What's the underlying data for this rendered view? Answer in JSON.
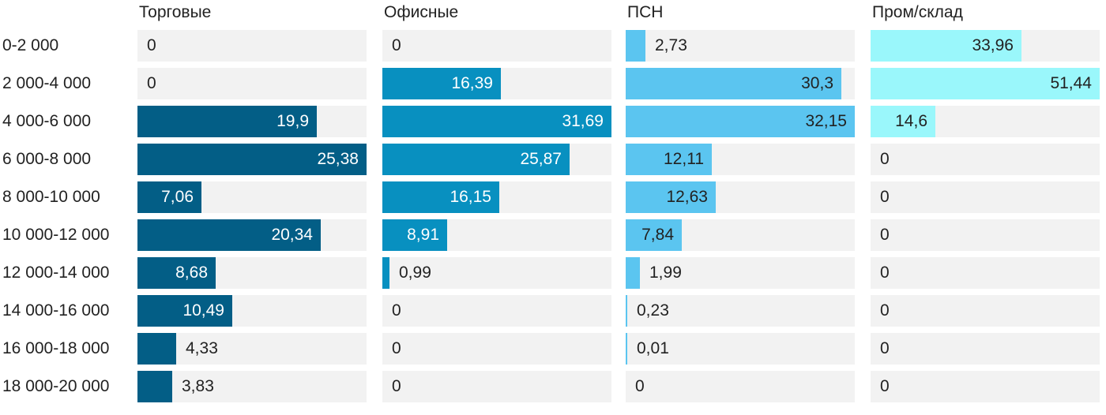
{
  "chart_data": {
    "type": "bar",
    "orientation": "horizontal",
    "layout": "small-multiples",
    "categories": [
      "0-2 000",
      "2 000-4 000",
      "4 000-6 000",
      "6 000-8 000",
      "8 000-10 000",
      "10 000-12 000",
      "12 000-14 000",
      "14 000-16 000",
      "16 000-18 000",
      "18 000-20 000"
    ],
    "series": [
      {
        "name": "Торговые",
        "color": "#035e86",
        "text_on_bar": "#ffffff",
        "values": [
          0,
          0,
          19.9,
          25.38,
          7.06,
          20.34,
          8.68,
          10.49,
          4.33,
          3.83
        ],
        "labels": [
          "0",
          "0",
          "19,9",
          "25,38",
          "7,06",
          "20,34",
          "8,68",
          "10,49",
          "4,33",
          "3,83"
        ],
        "xlim": [
          0,
          25.38
        ]
      },
      {
        "name": "Офисные",
        "color": "#0890c0",
        "text_on_bar": "#ffffff",
        "values": [
          0,
          16.39,
          31.69,
          25.87,
          16.15,
          8.91,
          0.99,
          0,
          0,
          0
        ],
        "labels": [
          "0",
          "16,39",
          "31,69",
          "25,87",
          "16,15",
          "8,91",
          "0,99",
          "0",
          "0",
          "0"
        ],
        "xlim": [
          0,
          31.69
        ]
      },
      {
        "name": "ПСН",
        "color": "#5bc5f0",
        "text_on_bar": "#222222",
        "values": [
          2.73,
          30.3,
          32.15,
          12.11,
          12.63,
          7.84,
          1.99,
          0.23,
          0.01,
          0
        ],
        "labels": [
          "2,73",
          "30,3",
          "32,15",
          "12,11",
          "12,63",
          "7,84",
          "1,99",
          "0,23",
          "0,01",
          "0"
        ],
        "xlim": [
          0,
          32.15
        ]
      },
      {
        "name": "Пром/склад",
        "color": "#9af7fb",
        "text_on_bar": "#222222",
        "values": [
          33.96,
          51.44,
          14.6,
          0,
          0,
          0,
          0,
          0,
          0,
          0
        ],
        "labels": [
          "33,96",
          "51,44",
          "14,6",
          "0",
          "0",
          "0",
          "0",
          "0",
          "0",
          "0"
        ],
        "xlim": [
          0,
          51.44
        ]
      }
    ],
    "title": "",
    "xlabel": "",
    "ylabel": "",
    "grid": false,
    "legend": "none"
  }
}
